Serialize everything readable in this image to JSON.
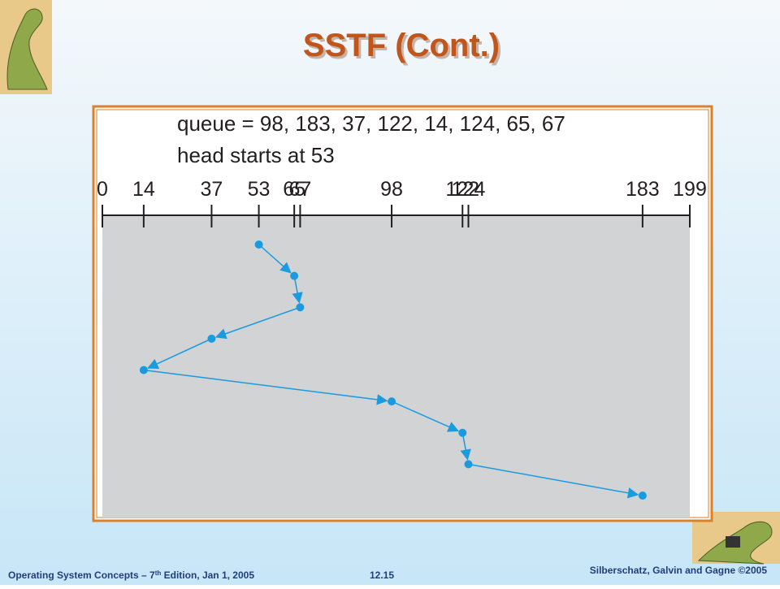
{
  "title": "SSTF (Cont.)",
  "figure": {
    "queue": "queue = 98, 183, 37, 122, 14, 124, 65, 67",
    "head": "head starts at 53",
    "ticks": [
      0,
      14,
      37,
      53,
      65,
      67,
      98,
      122,
      124,
      183,
      199
    ],
    "path": [
      53,
      65,
      67,
      37,
      14,
      98,
      122,
      124,
      183
    ]
  },
  "footer": {
    "left": "Operating System Concepts – 7",
    "left_sup": "th",
    "left_rest": " Edition, Jan 1, 2005",
    "center": "12.15",
    "right": "Silberschatz, Galvin and Gagne ©2005"
  }
}
